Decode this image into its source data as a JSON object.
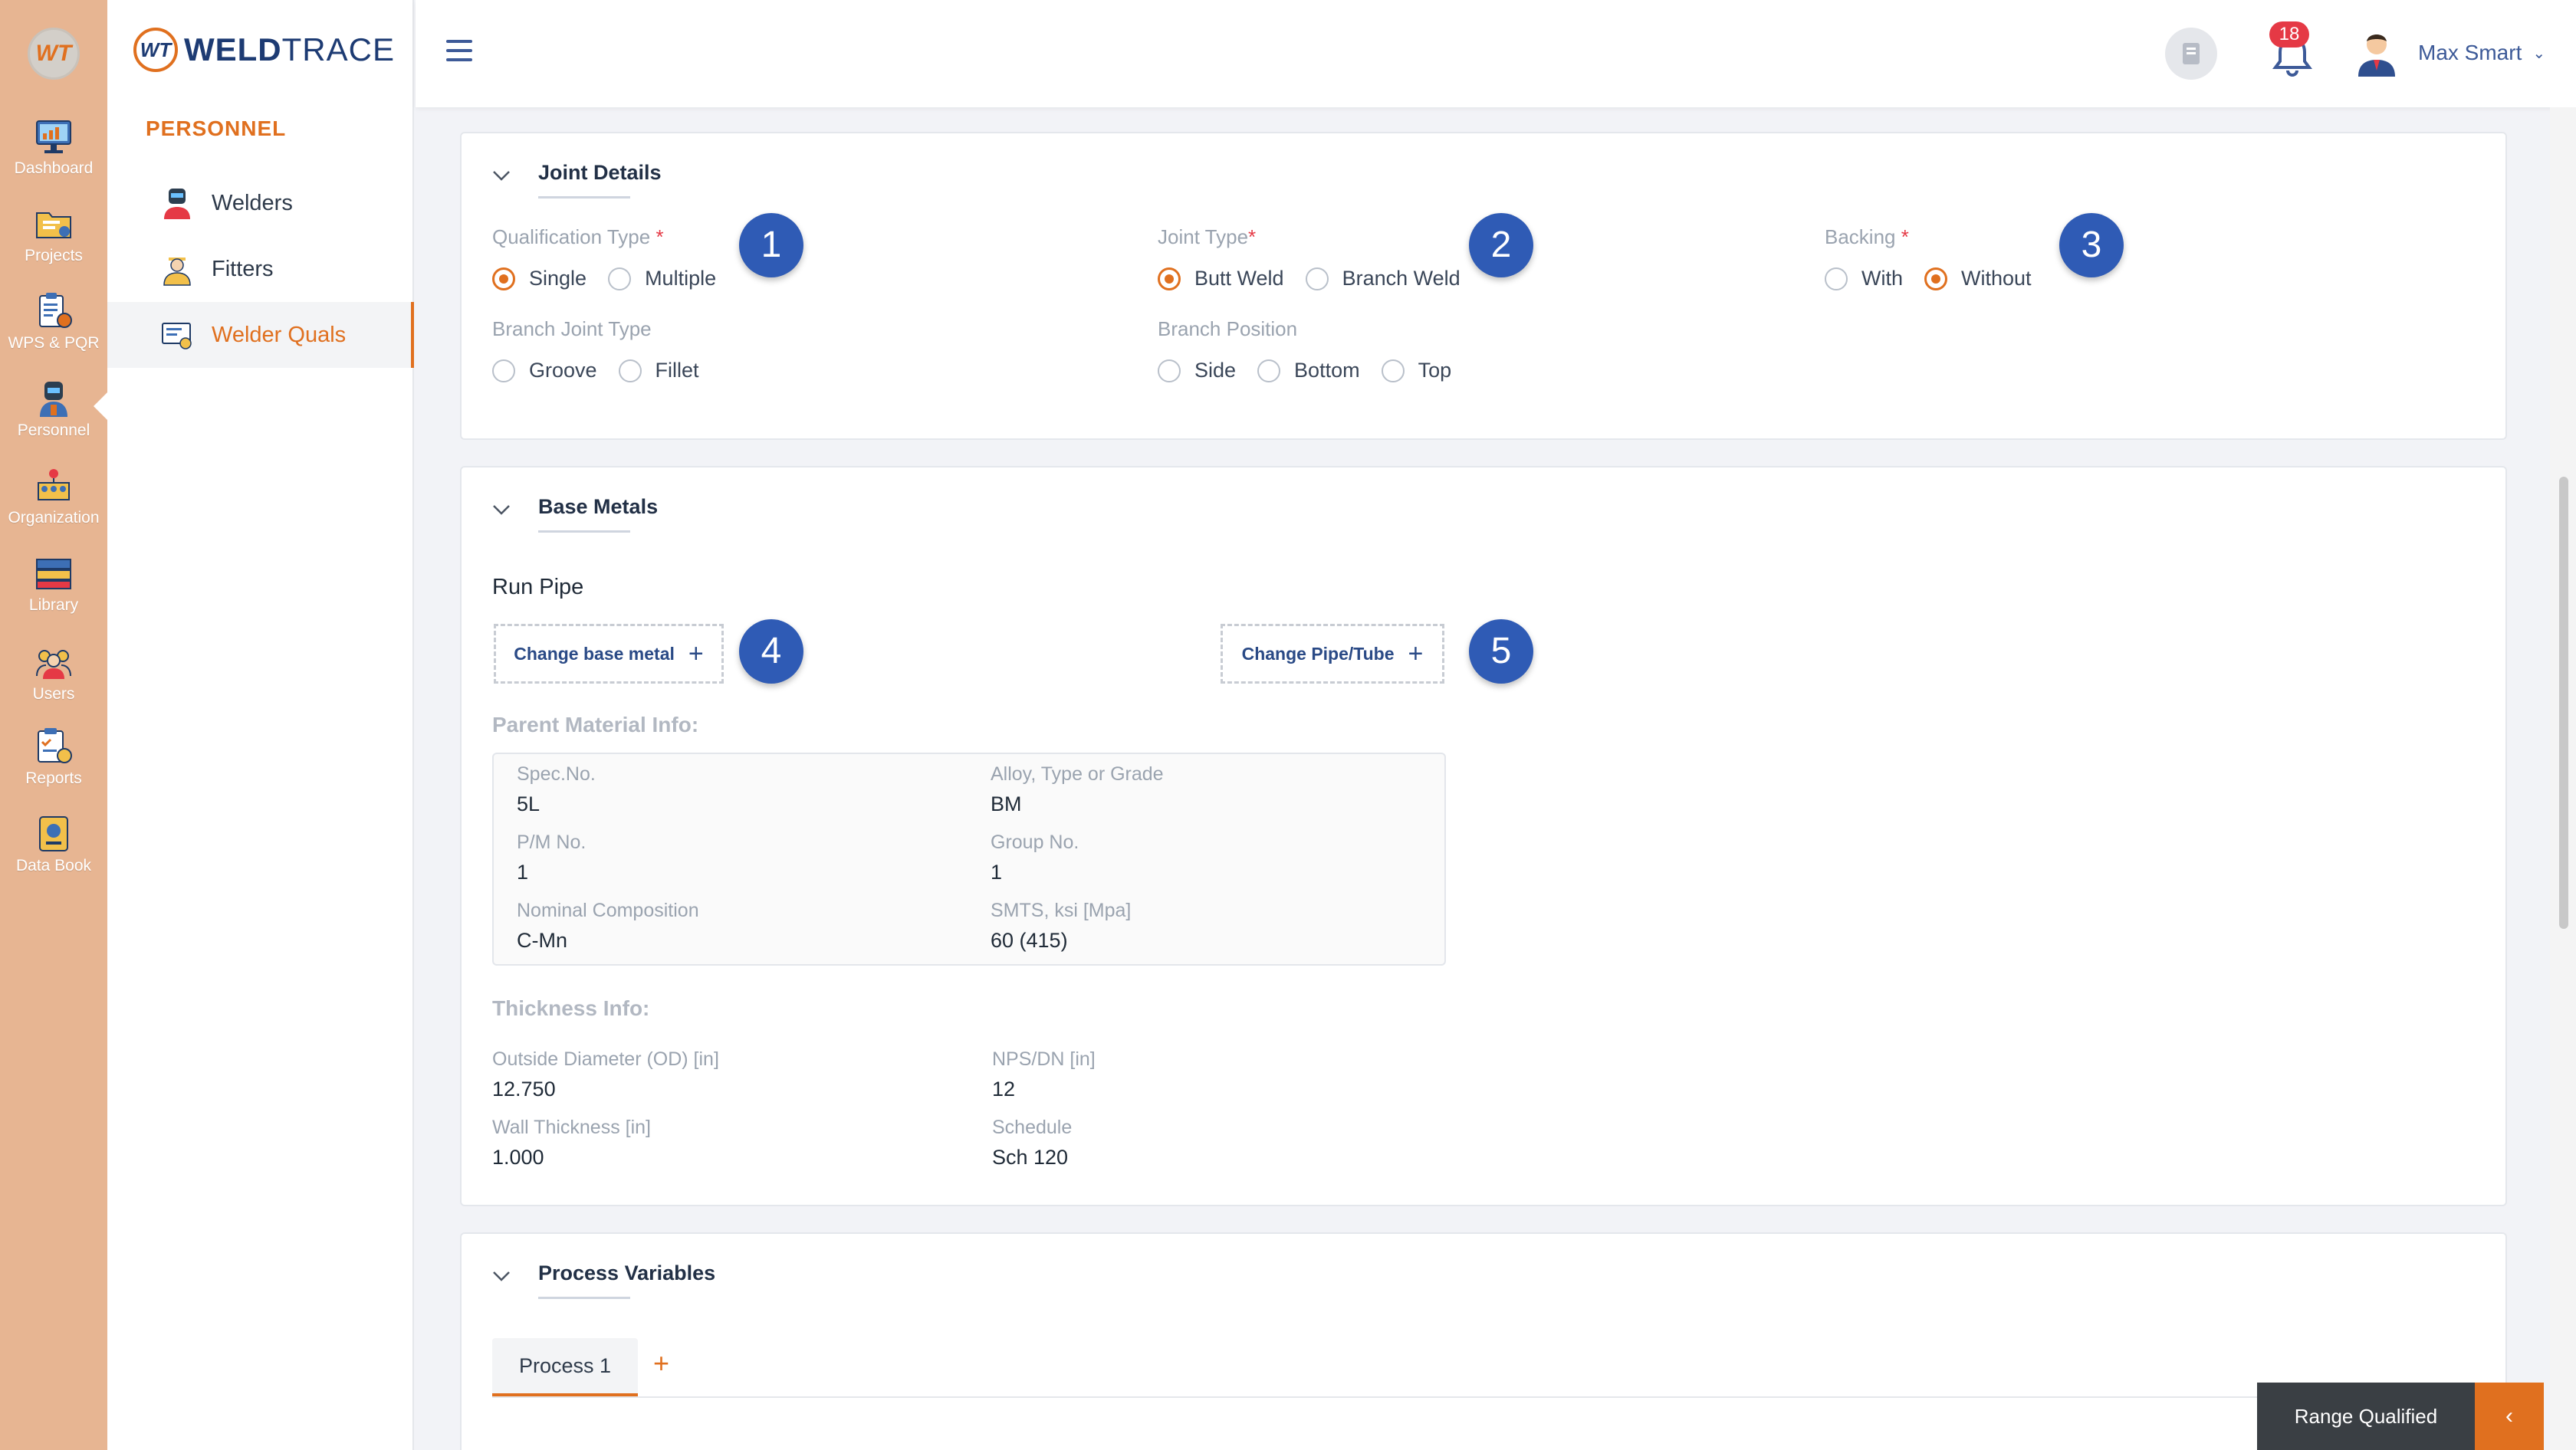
{
  "app": {
    "rail_logo_text": "WT",
    "brand_mark_text": "WT",
    "brand_bold": "WELD",
    "brand_thin": "TRACE"
  },
  "rail": {
    "items": [
      {
        "label": "Dashboard",
        "icon": "dashboard-icon"
      },
      {
        "label": "Projects",
        "icon": "projects-folder-icon"
      },
      {
        "label": "WPS & PQR",
        "icon": "wps-pqr-clipboard-icon"
      },
      {
        "label": "Personnel",
        "icon": "personnel-welder-icon"
      },
      {
        "label": "Organization",
        "icon": "organization-icon"
      },
      {
        "label": "Library",
        "icon": "library-books-icon"
      },
      {
        "label": "Users",
        "icon": "users-group-icon"
      },
      {
        "label": "Reports",
        "icon": "reports-clipboard-icon"
      },
      {
        "label": "Data Book",
        "icon": "data-book-icon"
      }
    ],
    "active": "Personnel"
  },
  "subnav": {
    "section": "PERSONNEL",
    "items": [
      {
        "label": "Welders",
        "icon": "welder-icon"
      },
      {
        "label": "Fitters",
        "icon": "fitter-icon"
      },
      {
        "label": "Welder Quals",
        "icon": "welder-quals-icon"
      }
    ],
    "active": "Welder Quals"
  },
  "header": {
    "notification_count": "18",
    "user_name": "Max Smart",
    "user_chevron": "⌄"
  },
  "joint_details": {
    "title": "Joint Details",
    "qualification_type": {
      "label": "Qualification Type",
      "required": "*",
      "options": [
        "Single",
        "Multiple"
      ],
      "selected": "Single"
    },
    "joint_type": {
      "label": "Joint Type",
      "required": "*",
      "options": [
        "Butt Weld",
        "Branch Weld"
      ],
      "selected": "Butt Weld"
    },
    "backing": {
      "label": "Backing",
      "required": "*",
      "options": [
        "With",
        "Without"
      ],
      "selected": "Without"
    },
    "branch_joint_type": {
      "label": "Branch Joint Type",
      "options": [
        "Groove",
        "Fillet"
      ],
      "selected": ""
    },
    "branch_position": {
      "label": "Branch Position",
      "options": [
        "Side",
        "Bottom",
        "Top"
      ],
      "selected": ""
    }
  },
  "base_metals": {
    "title": "Base Metals",
    "run_pipe_label": "Run Pipe",
    "change_base_metal": "Change base metal",
    "change_pipe_tube": "Change Pipe/Tube",
    "plus": "+",
    "parent_material_title": "Parent Material Info:",
    "parent_material": {
      "spec_no": {
        "label": "Spec.No.",
        "value": "5L"
      },
      "alloy": {
        "label": "Alloy, Type or Grade",
        "value": "BM"
      },
      "pm_no": {
        "label": "P/M No.",
        "value": "1"
      },
      "group_no": {
        "label": "Group No.",
        "value": "1"
      },
      "nominal_comp": {
        "label": "Nominal Composition",
        "value": "C-Mn"
      },
      "smts": {
        "label": "SMTS, ksi [Mpa]",
        "value": "60 (415)"
      }
    },
    "thickness_title": "Thickness Info:",
    "thickness": {
      "od": {
        "label": "Outside Diameter (OD) [in]",
        "value": "12.750"
      },
      "nps": {
        "label": "NPS/DN [in]",
        "value": "12"
      },
      "wall": {
        "label": "Wall Thickness [in]",
        "value": "1.000"
      },
      "schedule": {
        "label": "Schedule",
        "value": "Sch 120"
      }
    }
  },
  "process_variables": {
    "title": "Process Variables",
    "tabs": [
      "Process 1"
    ],
    "add_tab": "+"
  },
  "callouts": [
    "1",
    "2",
    "3",
    "4",
    "5"
  ],
  "footer": {
    "range_qualified": "Range Qualified",
    "toggle": "‹"
  },
  "colors": {
    "accent": "#e0701f",
    "rail_bg": "#e7b592",
    "callout": "#2f5bb5",
    "navy": "#1d3b73"
  }
}
